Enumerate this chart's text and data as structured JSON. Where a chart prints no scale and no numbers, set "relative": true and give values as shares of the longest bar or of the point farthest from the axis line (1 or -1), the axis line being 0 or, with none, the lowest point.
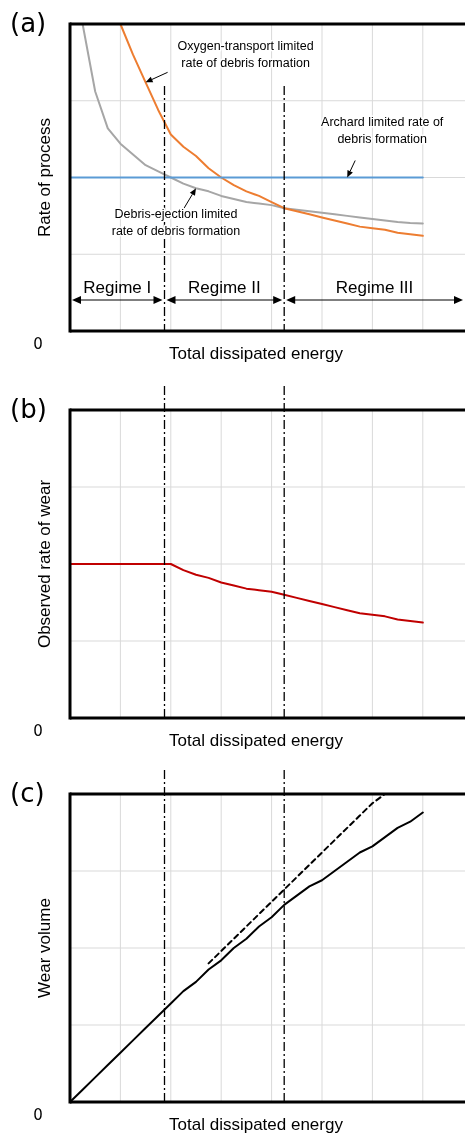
{
  "chart_data": [
    {
      "type": "line",
      "title": "(a)",
      "xlabel": "Total dissipated energy",
      "ylabel": "Rate of process",
      "relative": true,
      "grid": true,
      "categories": [
        null,
        null,
        null,
        null,
        null,
        null,
        null,
        null,
        null,
        null,
        null,
        null,
        null,
        null,
        null,
        null,
        null,
        null,
        null,
        null,
        null,
        null,
        null,
        null,
        null,
        null,
        null,
        null,
        null
      ],
      "series": [
        {
          "color": "#a6a6a6",
          "values": [
            null,
            1.0,
            0.78,
            0.66,
            0.61,
            0.575,
            0.54,
            0.52,
            0.5,
            0.48,
            0.465,
            0.455,
            0.44,
            0.43,
            0.42,
            0.415,
            0.41,
            0.4,
            0.395,
            0.39,
            0.385,
            0.38,
            0.375,
            0.37,
            0.365,
            0.36,
            0.355,
            0.352,
            0.35
          ]
        },
        {
          "color": "#ed7d31",
          "values": [
            null,
            null,
            null,
            null,
            1.0,
            0.9,
            0.81,
            0.72,
            0.64,
            0.6,
            0.57,
            0.53,
            0.5,
            0.475,
            0.455,
            0.44,
            0.42,
            0.4,
            0.39,
            0.38,
            0.37,
            0.36,
            0.35,
            0.34,
            0.335,
            0.33,
            0.32,
            0.315,
            0.31
          ]
        },
        {
          "color": "#5b9bd5",
          "values": [
            0.5,
            0.5,
            0.5,
            0.5,
            0.5,
            0.5,
            0.5,
            0.5,
            0.5,
            0.5,
            0.5,
            0.5,
            0.5,
            0.5,
            0.5,
            0.5,
            0.5,
            0.5,
            0.5,
            0.5,
            0.5,
            0.5,
            0.5,
            0.5,
            0.5,
            0.5,
            0.5,
            0.5,
            0.5
          ]
        }
      ],
      "annotations": [
        "Oxygen-transport limited rate of debris formation",
        "Archard limited rate of debris formation",
        "Debris-ejection limited rate of debris formation",
        "Regime I",
        "Regime II",
        "Regime III",
        "0"
      ]
    },
    {
      "type": "line",
      "title": "(b)",
      "xlabel": "Total dissipated energy",
      "ylabel": "Observed rate of wear",
      "relative": true,
      "grid": true,
      "categories": [
        null,
        null,
        null,
        null,
        null,
        null,
        null,
        null,
        null,
        null,
        null,
        null,
        null,
        null,
        null,
        null,
        null,
        null,
        null,
        null,
        null,
        null,
        null,
        null,
        null,
        null,
        null,
        null,
        null
      ],
      "series": [
        {
          "color": "#c00000",
          "values": [
            1.0,
            1.0,
            1.0,
            1.0,
            1.0,
            1.0,
            1.0,
            1.0,
            1.0,
            0.96,
            0.93,
            0.91,
            0.88,
            0.86,
            0.84,
            0.83,
            0.82,
            0.8,
            0.78,
            0.76,
            0.74,
            0.72,
            0.7,
            0.68,
            0.67,
            0.66,
            0.64,
            0.63,
            0.62
          ]
        }
      ],
      "annotations": [
        "0"
      ]
    },
    {
      "type": "line",
      "title": "(c)",
      "xlabel": "Total dissipated energy",
      "ylabel": "Wear volume",
      "relative": true,
      "grid": true,
      "categories": [
        null,
        null,
        null,
        null,
        null,
        null,
        null,
        null,
        null,
        null,
        null,
        null,
        null,
        null,
        null,
        null,
        null,
        null,
        null,
        null,
        null,
        null,
        null,
        null,
        null,
        null,
        null,
        null,
        null
      ],
      "series": [
        {
          "color": "#000000",
          "line_style": "solid",
          "values": [
            0,
            0.04,
            0.08,
            0.12,
            0.16,
            0.2,
            0.24,
            0.28,
            0.32,
            0.36,
            0.39,
            0.43,
            0.46,
            0.5,
            0.53,
            0.57,
            0.6,
            0.64,
            0.67,
            0.7,
            0.72,
            0.75,
            0.78,
            0.81,
            0.83,
            0.86,
            0.89,
            0.91,
            0.94
          ]
        },
        {
          "color": "#000000",
          "line_style": "dashed",
          "values": [
            null,
            null,
            null,
            null,
            null,
            null,
            null,
            null,
            null,
            null,
            null,
            0.45,
            0.49,
            0.53,
            0.57,
            0.61,
            0.65,
            0.69,
            0.73,
            0.77,
            0.81,
            0.85,
            0.89,
            0.93,
            0.97,
            1.0,
            null,
            null,
            null
          ]
        }
      ],
      "annotations": [
        "0"
      ]
    }
  ]
}
